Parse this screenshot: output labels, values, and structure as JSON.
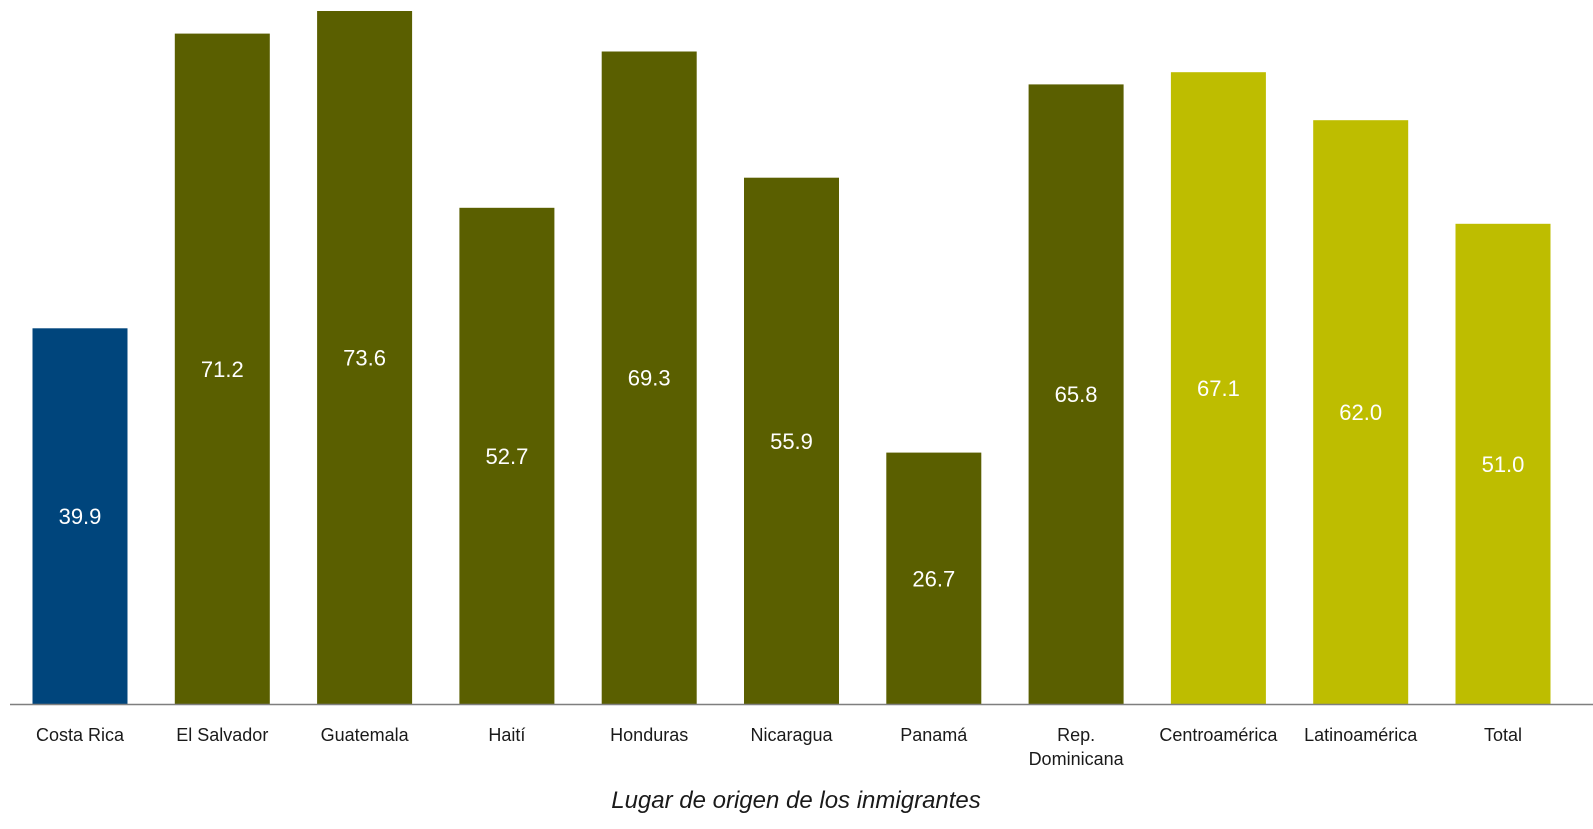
{
  "chart_data": {
    "type": "bar",
    "title": "",
    "xlabel": "Lugar de origen de los inmigrantes",
    "ylabel": "",
    "ylim": [
      0,
      73.6
    ],
    "grid": false,
    "legend": "none",
    "categories": [
      "Costa Rica",
      "El Salvador",
      "Guatemala",
      "Haití",
      "Honduras",
      "Nicaragua",
      "Panamá",
      "Rep. Dominicana",
      "Centroamérica",
      "Latinoamérica",
      "Total"
    ],
    "category_lines": [
      [
        "Costa Rica"
      ],
      [
        "El Salvador"
      ],
      [
        "Guatemala"
      ],
      [
        "Haití"
      ],
      [
        "Honduras"
      ],
      [
        "Nicaragua"
      ],
      [
        "Panamá"
      ],
      [
        "Rep.",
        "Dominicana"
      ],
      [
        "Centroamérica"
      ],
      [
        "Latinoamérica"
      ],
      [
        "Total"
      ]
    ],
    "values": [
      39.9,
      71.2,
      73.6,
      52.7,
      69.3,
      55.9,
      26.7,
      65.8,
      67.1,
      62.0,
      51.0
    ],
    "value_labels": [
      "39.9",
      "71.2",
      "73.6",
      "52.7",
      "69.3",
      "55.9",
      "26.7",
      "65.8",
      "67.1",
      "62.0",
      "51.0"
    ],
    "bar_colors": [
      "#00457c",
      "#5a5f00",
      "#5a5f00",
      "#5a5f00",
      "#5a5f00",
      "#5a5f00",
      "#5a5f00",
      "#5a5f00",
      "#bebd00",
      "#bebd00",
      "#bebd00"
    ],
    "axis_color": "#7f7f7f"
  }
}
